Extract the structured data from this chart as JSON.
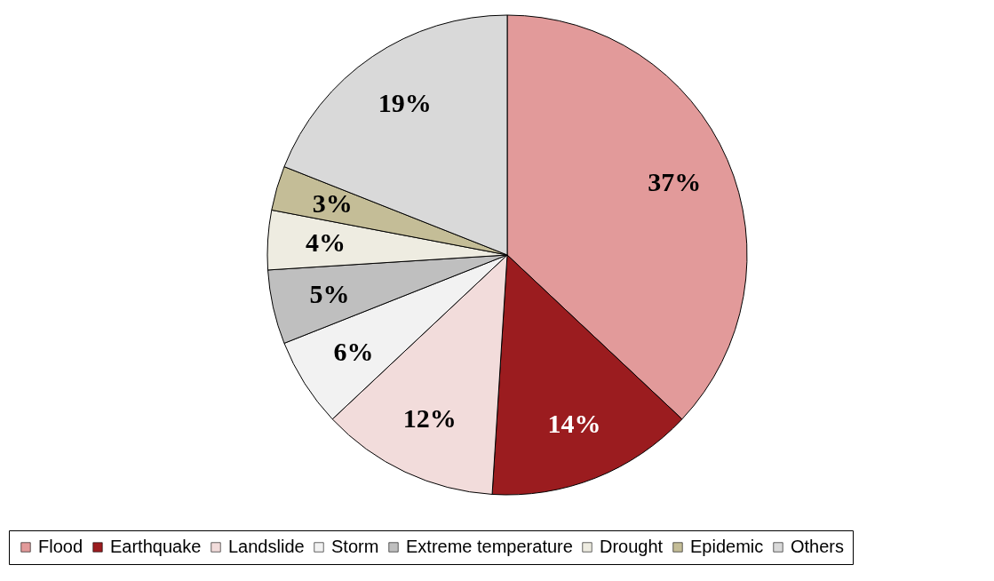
{
  "chart_data": {
    "type": "pie",
    "categories": [
      "Flood",
      "Earthquake",
      "Landslide",
      "Storm",
      "Extreme temperature",
      "Drought",
      "Epidemic",
      "Others"
    ],
    "values": [
      37,
      14,
      12,
      6,
      5,
      4,
      3,
      19
    ],
    "colors": [
      "#e29a9a",
      "#9b1c1f",
      "#f2dcdb",
      "#f2f2f2",
      "#bfbfbf",
      "#eeece1",
      "#c4bd97",
      "#d9d9d9"
    ],
    "value_labels": [
      "37%",
      "14%",
      "12%",
      "6%",
      "5%",
      "4%",
      "3%",
      "19%"
    ],
    "legend": "bottom"
  }
}
